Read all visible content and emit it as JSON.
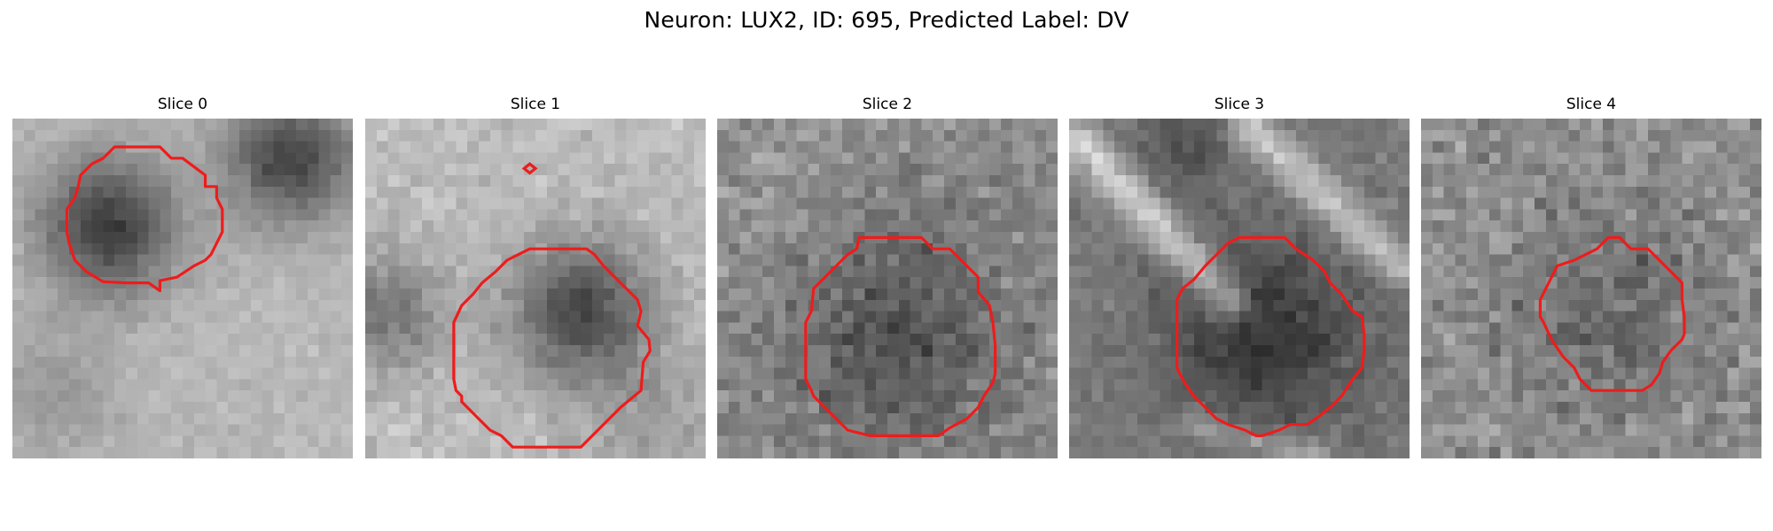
{
  "figure": {
    "title": "Neuron: LUX2, ID: 695, Predicted Label: DV",
    "contour_color": "#ee1c1c"
  },
  "slices": [
    {
      "title": "Slice 0"
    },
    {
      "title": "Slice 1"
    },
    {
      "title": "Slice 2"
    },
    {
      "title": "Slice 3"
    },
    {
      "title": "Slice 4"
    }
  ]
}
